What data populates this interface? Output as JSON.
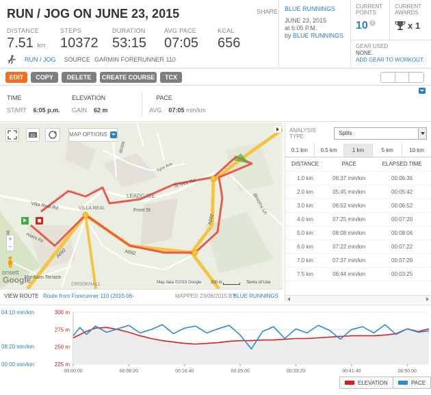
{
  "header": {
    "title": "RUN / JOG ON JUNE 23, 2015",
    "stats": [
      {
        "label": "DISTANCE",
        "value": "7.51",
        "unit": "km"
      },
      {
        "label": "STEPS",
        "value": "10372",
        "unit": ""
      },
      {
        "label": "DURATION",
        "value": "53:15",
        "unit": ""
      },
      {
        "label": "AVG PACE",
        "value": "07:05",
        "unit": ""
      },
      {
        "label": "KCAL",
        "value": "656",
        "unit": ""
      }
    ],
    "sport": "RUN / JOG",
    "source_label": "SOURCE",
    "source_value": "GARMIN FORERUNNER 110"
  },
  "share": {
    "label": "SHARE:",
    "group": "BLUE RUNNINGS",
    "date": "JUNE 23, 2015",
    "time": "at 6:05 P.M.",
    "by_label": "by",
    "by_value": "BLUE RUNNINGS"
  },
  "points": {
    "label_line1": "CURRENT",
    "label_line2": "POINTS",
    "value": "10",
    "help": "?"
  },
  "awards": {
    "label_line1": "CURRENT",
    "label_line2": "AWARDS",
    "value": "x 1"
  },
  "gear": {
    "label": "GEAR USED",
    "value": "NONE.",
    "link": "ADD GEAR TO WORKOUT."
  },
  "toolbar": {
    "edit": "EDIT",
    "copy": "COPY",
    "delete": "DELETE",
    "create_course": "CREATE COURSE",
    "tcx": "TCX"
  },
  "details": {
    "time_h": "TIME",
    "start_l": "START",
    "start_v": "6:05 p.m.",
    "elev_h": "ELEVATION",
    "gain_l": "GAIN",
    "gain_v": "62 m",
    "pace_h": "PACE",
    "avg_l": "AVG",
    "avg_v": "07:05",
    "avg_u": "min/km"
  },
  "map": {
    "options": "MAP OPTIONS",
    "attribution": "Map data ©2015 Google",
    "scale": "200 m",
    "terms": "Terms of Use",
    "google": "Google",
    "labels": [
      "LEADGATE",
      "VILLA REAL",
      "Villa Real Rd",
      "Front St",
      "St Ives Rd",
      "Tyne Ave",
      "B6309",
      "A692",
      "A692",
      "A692",
      "Brooms Ln",
      "Sherburn Terrace",
      "Aspire Rd",
      "CROOKHALL",
      "B6308",
      "onsett"
    ]
  },
  "map_footer": {
    "view_label": "VIEW ROUTE",
    "route": "Route from Forerunner 110 (2015-06-",
    "mapped": "MAPPED 23/06/2015 BY",
    "mapped_by": "BLUE RUNNINGS"
  },
  "splits": {
    "analysis_label": "ANALYSIS TYPE:",
    "analysis_value": "Splits",
    "tabs": [
      "0.1 km",
      "0.5 km",
      "1 km",
      "5 km",
      "10 km"
    ],
    "active_tab": 2,
    "headers": [
      "DISTANCE",
      "PACE",
      "ELAPSED TIME"
    ],
    "rows": [
      [
        "1.0 km",
        "06:37 min/km",
        "00:06:36"
      ],
      [
        "2.0 km",
        "05:45 min/km",
        "00:05:42"
      ],
      [
        "3.0 km",
        "06:52 min/km",
        "00:06:52"
      ],
      [
        "4.0 km",
        "07:25 min/km",
        "00:07:20"
      ],
      [
        "5.0 km",
        "08:08 min/km",
        "00:08:06"
      ],
      [
        "6.0 km",
        "07:22 min/km",
        "00:07:22"
      ],
      [
        "7.0 km",
        "07:37 min/km",
        "00:07:29"
      ],
      [
        "7.5 km",
        "06:44 min/km",
        "00:03:25"
      ]
    ]
  },
  "chart_data": {
    "type": "line",
    "title": "",
    "left_axis_ticks": [
      "04:10 min/km",
      "08:20 min/km",
      "00:00 min/km"
    ],
    "right_axis_ticks": [
      "300 m",
      "275 m",
      "250 m",
      "225 m"
    ],
    "ylim_elevation": [
      225,
      300
    ],
    "x_ticks": [
      "00:00:00",
      "00:08:20",
      "00:16:40",
      "00:25:00",
      "00:33:20",
      "00:41:40",
      "00:50:00"
    ],
    "xlim_seconds": [
      0,
      3195
    ],
    "series": [
      {
        "name": "ELEVATION",
        "color": "#d42020",
        "x": [
          0,
          100,
          200,
          300,
          400,
          500,
          600,
          700,
          800,
          900,
          1000,
          1100,
          1200,
          1300,
          1400,
          1500,
          1600,
          1700,
          1800,
          1900,
          2000,
          2100,
          2200,
          2300,
          2400,
          2500,
          2600,
          2700,
          2800,
          2900,
          3000,
          3100,
          3195
        ],
        "values": [
          263,
          271,
          277,
          278,
          275,
          271,
          266,
          262,
          259,
          257,
          255,
          254,
          255,
          256,
          258,
          259,
          259,
          260,
          260,
          261,
          262,
          262,
          263,
          264,
          265,
          266,
          266,
          266,
          267,
          269,
          276,
          272,
          276
        ]
      },
      {
        "name": "PACE",
        "color": "#2a8ad8",
        "x": [
          0,
          60,
          120,
          200,
          300,
          400,
          500,
          600,
          700,
          800,
          900,
          1000,
          1100,
          1200,
          1300,
          1400,
          1500,
          1600,
          1700,
          1800,
          1900,
          2000,
          2100,
          2200,
          2300,
          2400,
          2500,
          2600,
          2700,
          2800,
          2900,
          3000,
          3100,
          3195
        ],
        "values": [
          266,
          278,
          268,
          280,
          271,
          276,
          281,
          270,
          275,
          282,
          269,
          277,
          280,
          270,
          276,
          281,
          267,
          247,
          272,
          279,
          262,
          276,
          270,
          281,
          274,
          261,
          275,
          279,
          270,
          282,
          268,
          276,
          271,
          273
        ]
      }
    ],
    "legend": [
      "ELEVATION",
      "PACE"
    ]
  },
  "colors": {
    "accent": "#f26f21",
    "link": "#2a7fc9",
    "route": "#e85a4a",
    "road": "#f5c542"
  }
}
